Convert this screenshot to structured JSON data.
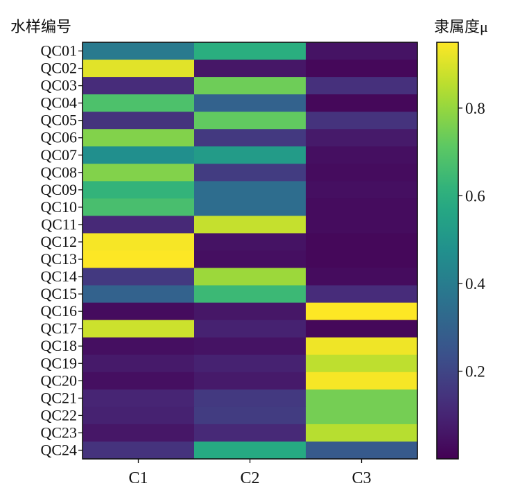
{
  "chart_data": {
    "type": "heatmap",
    "ylabel": "水样编号",
    "colorbar_label": "隶属度μ",
    "x_categories": [
      "C1",
      "C2",
      "C3"
    ],
    "y_categories": [
      "QC01",
      "QC02",
      "QC03",
      "QC04",
      "QC05",
      "QC06",
      "QC07",
      "QC08",
      "QC09",
      "QC10",
      "QC11",
      "QC12",
      "QC13",
      "QC14",
      "QC15",
      "QC16",
      "QC17",
      "QC18",
      "QC19",
      "QC20",
      "QC21",
      "QC22",
      "QC23",
      "QC24"
    ],
    "values": [
      [
        0.39,
        0.6,
        0.05
      ],
      [
        0.91,
        0.06,
        0.02
      ],
      [
        0.12,
        0.74,
        0.13
      ],
      [
        0.68,
        0.3,
        0.02
      ],
      [
        0.14,
        0.72,
        0.14
      ],
      [
        0.77,
        0.16,
        0.07
      ],
      [
        0.47,
        0.52,
        0.04
      ],
      [
        0.77,
        0.17,
        0.03
      ],
      [
        0.62,
        0.34,
        0.04
      ],
      [
        0.67,
        0.34,
        0.03
      ],
      [
        0.11,
        0.87,
        0.03
      ],
      [
        0.94,
        0.05,
        0.02
      ],
      [
        0.95,
        0.04,
        0.02
      ],
      [
        0.16,
        0.81,
        0.03
      ],
      [
        0.3,
        0.64,
        0.12
      ],
      [
        0.03,
        0.06,
        0.96
      ],
      [
        0.88,
        0.09,
        0.02
      ],
      [
        0.04,
        0.05,
        0.93
      ],
      [
        0.07,
        0.09,
        0.86
      ],
      [
        0.04,
        0.07,
        0.94
      ],
      [
        0.1,
        0.16,
        0.75
      ],
      [
        0.09,
        0.17,
        0.75
      ],
      [
        0.06,
        0.11,
        0.85
      ],
      [
        0.14,
        0.58,
        0.27
      ]
    ],
    "vmin": 0.0,
    "vmax": 0.95,
    "colormap": "viridis",
    "colorbar_ticks": [
      "0.2",
      "0.4",
      "0.6",
      "0.8"
    ],
    "colorbar_tick_values": [
      0.2,
      0.4,
      0.6,
      0.8
    ]
  }
}
